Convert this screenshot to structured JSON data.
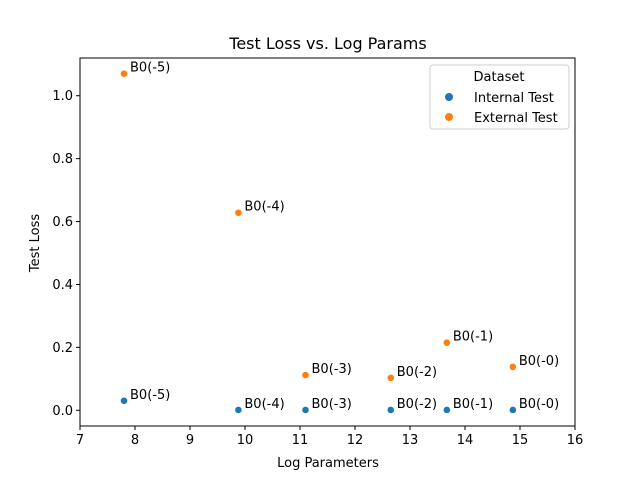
{
  "chart_data": {
    "type": "scatter",
    "title": "Test Loss vs. Log Params",
    "xlabel": "Log Parameters",
    "ylabel": "Test Loss",
    "xlim": [
      7,
      16
    ],
    "ylim": [
      -0.05,
      1.12
    ],
    "xticks": [
      "7",
      "8",
      "9",
      "10",
      "11",
      "12",
      "13",
      "14",
      "15",
      "16"
    ],
    "yticks": [
      "0.0",
      "0.2",
      "0.4",
      "0.6",
      "0.8",
      "1.0"
    ],
    "grid": false,
    "legend": {
      "title": "Dataset",
      "placement": "top-right"
    },
    "series": [
      {
        "name": "Internal Test",
        "color": "#1f77b4",
        "points": [
          {
            "x": 7.8,
            "y": 0.03,
            "label": "B0(-5)"
          },
          {
            "x": 9.88,
            "y": 0.001,
            "label": "B0(-4)"
          },
          {
            "x": 11.1,
            "y": 0.001,
            "label": "B0(-3)"
          },
          {
            "x": 12.65,
            "y": 0.001,
            "label": "B0(-2)"
          },
          {
            "x": 13.67,
            "y": 0.001,
            "label": "B0(-1)"
          },
          {
            "x": 14.87,
            "y": 0.001,
            "label": "B0(-0)"
          }
        ]
      },
      {
        "name": "External Test",
        "color": "#ff7f0e",
        "points": [
          {
            "x": 7.8,
            "y": 1.07,
            "label": "B0(-5)"
          },
          {
            "x": 9.88,
            "y": 0.628,
            "label": "B0(-4)"
          },
          {
            "x": 11.1,
            "y": 0.112,
            "label": "B0(-3)"
          },
          {
            "x": 12.65,
            "y": 0.103,
            "label": "B0(-2)"
          },
          {
            "x": 13.67,
            "y": 0.215,
            "label": "B0(-1)"
          },
          {
            "x": 14.87,
            "y": 0.138,
            "label": "B0(-0)"
          }
        ]
      }
    ]
  }
}
